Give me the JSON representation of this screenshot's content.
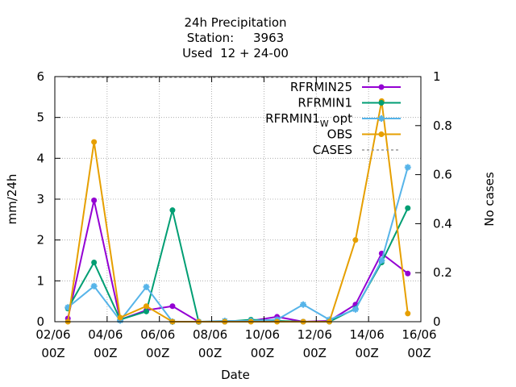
{
  "chart_data": {
    "type": "line",
    "title_lines": [
      "24h Precipitation",
      "Station:     3963",
      "Used  12 + 24-00"
    ],
    "xlabel": "Date",
    "ylabel": "mm/24h",
    "y2label": "No cases",
    "ylim": [
      0,
      6
    ],
    "y2lim": [
      0,
      1
    ],
    "yticks": [
      "0",
      "1",
      "2",
      "3",
      "4",
      "5",
      "6"
    ],
    "y2ticks": [
      "0",
      "0.2",
      "0.4",
      "0.6",
      "0.8",
      "1"
    ],
    "x_tick_labels": [
      {
        "date": "02/06",
        "hour": "00Z"
      },
      {
        "date": "04/06",
        "hour": "00Z"
      },
      {
        "date": "06/06",
        "hour": "00Z"
      },
      {
        "date": "08/06",
        "hour": "00Z"
      },
      {
        "date": "10/06",
        "hour": "00Z"
      },
      {
        "date": "12/06",
        "hour": "00Z"
      },
      {
        "date": "14/06",
        "hour": "00Z"
      },
      {
        "date": "16/06",
        "hour": "00Z"
      }
    ],
    "xlim_days": [
      2,
      16
    ],
    "grid": true,
    "legend_position": "top-right",
    "x": [
      2.5,
      3.5,
      4.5,
      5.5,
      6.5,
      7.5,
      8.5,
      9.5,
      10.5,
      11.5,
      12.5,
      13.5,
      14.5,
      15.5
    ],
    "series": [
      {
        "name": "RFRMIN25",
        "color": "#9400d3",
        "marker": "circle",
        "values": [
          0.08,
          2.97,
          0.05,
          0.28,
          0.38,
          0.0,
          0.0,
          0.02,
          0.12,
          0.0,
          0.02,
          0.42,
          1.67,
          1.18
        ]
      },
      {
        "name": "RFRMIN1",
        "color": "#009e73",
        "marker": "circle",
        "values": [
          0.32,
          1.45,
          0.05,
          0.25,
          2.73,
          0.0,
          0.0,
          0.05,
          0.02,
          0.0,
          0.0,
          0.32,
          1.45,
          2.78
        ]
      },
      {
        "name": "RFRMIN1",
        "name_subscript": "W",
        "name_suffix": " opt",
        "color": "#56b4e9",
        "marker": "star",
        "values": [
          0.35,
          0.87,
          0.03,
          0.85,
          0.0,
          0.0,
          0.02,
          0.02,
          0.05,
          0.42,
          0.05,
          0.3,
          1.5,
          3.78
        ]
      },
      {
        "name": "OBS",
        "color": "#e69f00",
        "marker": "circle",
        "values": [
          0.0,
          4.4,
          0.1,
          0.38,
          0.0,
          0.0,
          0.0,
          0.0,
          0.0,
          0.0,
          0.0,
          2.0,
          5.4,
          0.2
        ]
      },
      {
        "name": "CASES",
        "color": "#999999",
        "dashed": true,
        "axis": "y2",
        "values": [
          1,
          1,
          1,
          1,
          1,
          1,
          1,
          1,
          1,
          1,
          1,
          1,
          1,
          1
        ]
      }
    ]
  }
}
